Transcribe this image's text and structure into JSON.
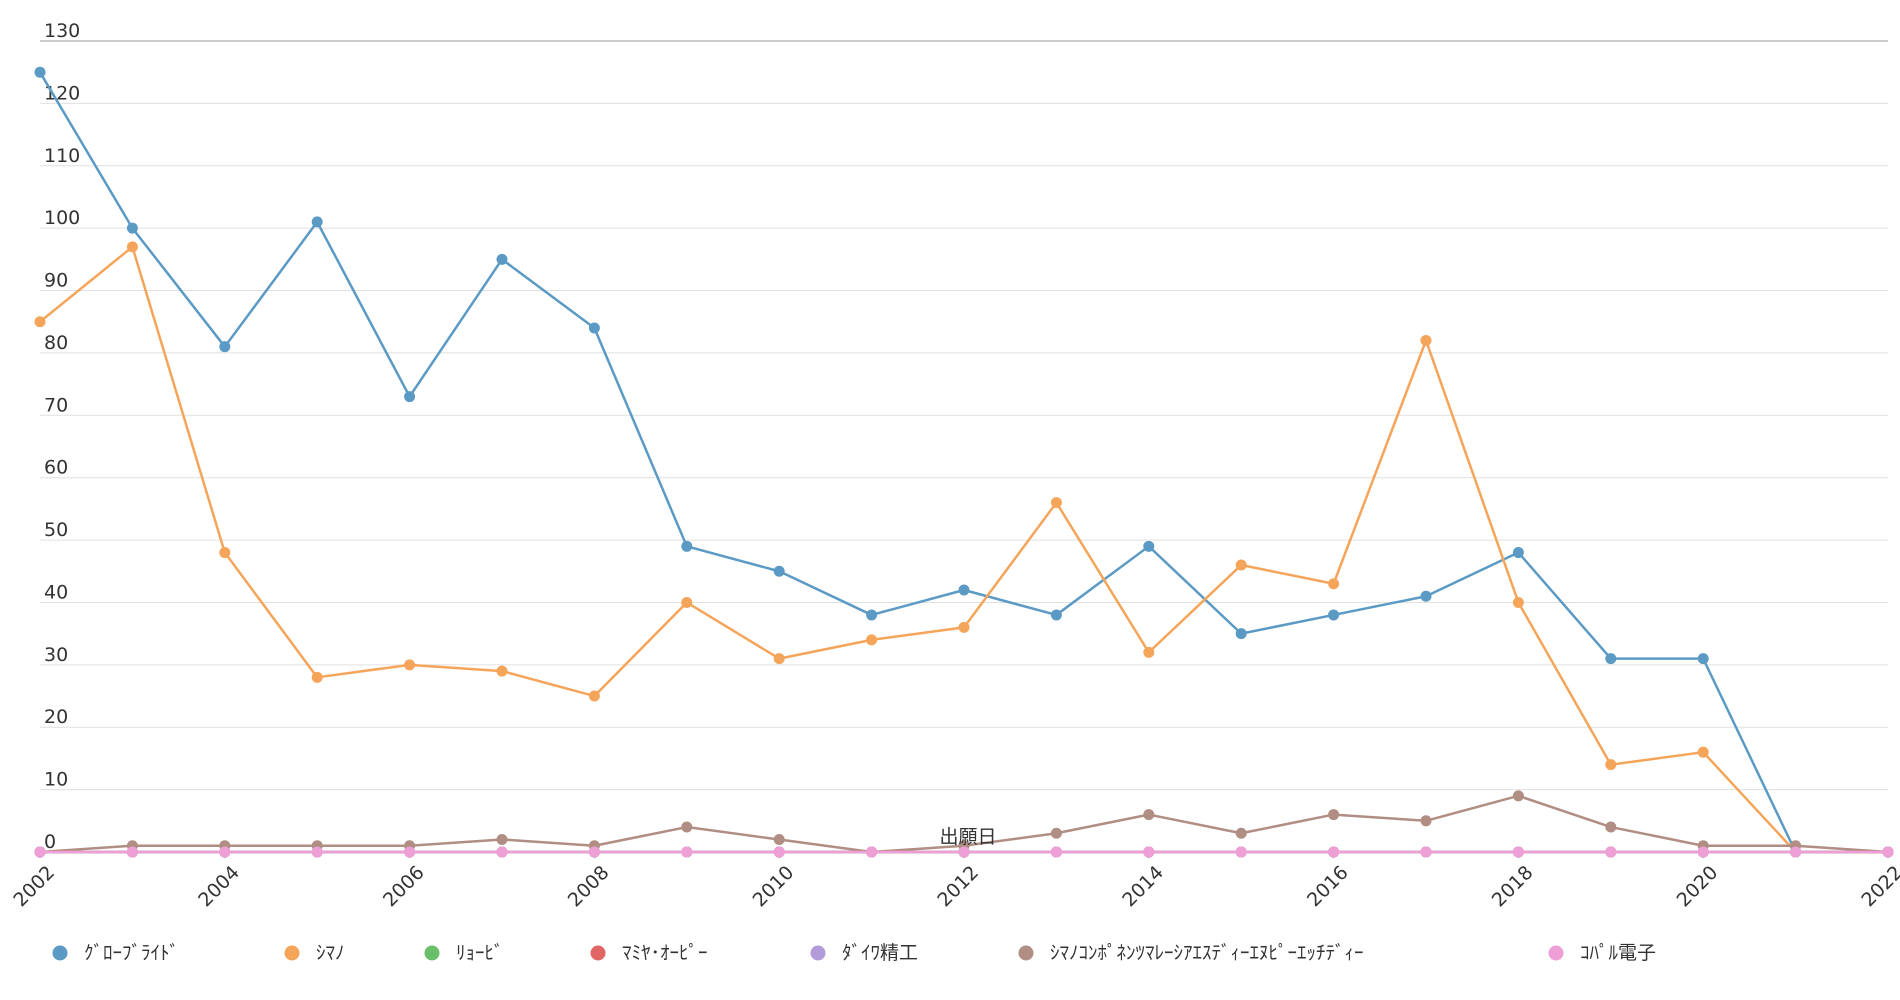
{
  "chart_data": {
    "type": "line",
    "xlabel": "出願日",
    "ylabel": "",
    "ylim": [
      0,
      130
    ],
    "yticks": [
      0,
      10,
      20,
      30,
      40,
      50,
      60,
      70,
      80,
      90,
      100,
      110,
      120,
      130
    ],
    "x": [
      2002,
      2003,
      2004,
      2005,
      2006,
      2007,
      2008,
      2009,
      2010,
      2011,
      2012,
      2013,
      2014,
      2015,
      2016,
      2017,
      2018,
      2019,
      2020,
      2021,
      2022
    ],
    "xticks": [
      "2002",
      "2004",
      "2006",
      "2008",
      "2010",
      "2012",
      "2014",
      "2016",
      "2018",
      "2020",
      "2022"
    ],
    "grid": true,
    "legend_position": "bottom",
    "series": [
      {
        "name": "ｸﾞﾛｰﾌﾞﾗｲﾄﾞ",
        "color": "#5b9ac4",
        "values": [
          125,
          100,
          81,
          101,
          73,
          95,
          84,
          49,
          45,
          38,
          42,
          38,
          49,
          35,
          38,
          41,
          48,
          31,
          31,
          0,
          0
        ]
      },
      {
        "name": "ｼﾏﾉ",
        "color": "#f5a55a",
        "values": [
          85,
          97,
          48,
          28,
          30,
          29,
          25,
          40,
          31,
          34,
          36,
          56,
          32,
          46,
          43,
          82,
          40,
          14,
          16,
          0,
          0
        ]
      },
      {
        "name": "ﾘｮｰﾋﾞ",
        "color": "#6abf69",
        "values": [
          0,
          0,
          0,
          0,
          0,
          0,
          0,
          0,
          0,
          0,
          0,
          0,
          0,
          0,
          0,
          0,
          0,
          0,
          0,
          0,
          0
        ]
      },
      {
        "name": "ﾏﾐﾔ･ｵｰﾋﾟｰ",
        "color": "#e06666",
        "values": [
          0,
          0,
          0,
          0,
          0,
          0,
          0,
          0,
          0,
          0,
          0,
          0,
          0,
          0,
          0,
          0,
          0,
          0,
          0,
          0,
          0
        ]
      },
      {
        "name": "ﾀﾞｲﾜ精工",
        "color": "#b39ad8",
        "values": [
          0,
          0,
          0,
          0,
          0,
          0,
          0,
          0,
          0,
          0,
          0,
          0,
          0,
          0,
          0,
          0,
          0,
          0,
          0,
          0,
          0
        ]
      },
      {
        "name": "ｼﾏﾉｺﾝﾎﾟﾈﾝﾂﾏﾚｰｼｱｴｽﾃﾞｨｰｴﾇﾋﾟｰｴｯﾁﾃﾞｨｰ",
        "color": "#b08e84",
        "values": [
          0,
          1,
          1,
          1,
          1,
          2,
          1,
          4,
          2,
          0,
          1,
          3,
          6,
          3,
          6,
          5,
          9,
          4,
          1,
          1,
          0
        ]
      },
      {
        "name": "ｺﾊﾟﾙ電子",
        "color": "#ee9fd6",
        "values": [
          0,
          0,
          0,
          0,
          0,
          0,
          0,
          0,
          0,
          0,
          0,
          0,
          0,
          0,
          0,
          0,
          0,
          0,
          0,
          0,
          0
        ]
      }
    ]
  }
}
